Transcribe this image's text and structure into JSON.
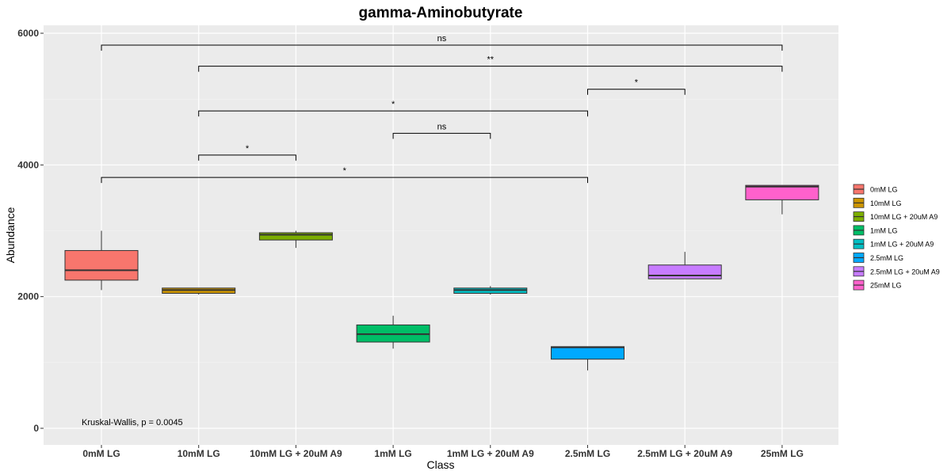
{
  "chart_data": {
    "type": "box",
    "title": "gamma-Aminobutyrate",
    "xlabel": "Class",
    "ylabel": "Abundance",
    "ylim": [
      -250,
      6000
    ],
    "yticks": [
      0,
      2000,
      4000,
      6000
    ],
    "categories": [
      "0mM LG",
      "10mM LG",
      "10mM LG + 20uM A9",
      "1mM LG",
      "1mM LG + 20uM A9",
      "2.5mM LG",
      "2.5mM LG + 20uM A9",
      "25mM LG"
    ],
    "colors": [
      "#F8766D",
      "#CD9600",
      "#7CAE00",
      "#00BE67",
      "#00BFC4",
      "#00A9FF",
      "#C77CFF",
      "#FF61CC"
    ],
    "boxes": [
      {
        "lower_whisker": 2100,
        "q1": 2250,
        "median": 2400,
        "q3": 2700,
        "upper_whisker": 3000
      },
      {
        "lower_whisker": 2030,
        "q1": 2050,
        "median": 2100,
        "q3": 2130,
        "upper_whisker": 2130
      },
      {
        "lower_whisker": 2740,
        "q1": 2860,
        "median": 2940,
        "q3": 2970,
        "upper_whisker": 3000
      },
      {
        "lower_whisker": 1210,
        "q1": 1310,
        "median": 1430,
        "q3": 1570,
        "upper_whisker": 1710
      },
      {
        "lower_whisker": 2030,
        "q1": 2050,
        "median": 2100,
        "q3": 2130,
        "upper_whisker": 2160
      },
      {
        "lower_whisker": 880,
        "q1": 1050,
        "median": 1230,
        "q3": 1240,
        "upper_whisker": 1240
      },
      {
        "lower_whisker": 2270,
        "q1": 2270,
        "median": 2320,
        "q3": 2480,
        "upper_whisker": 2680
      },
      {
        "lower_whisker": 3250,
        "q1": 3470,
        "median": 3670,
        "q3": 3690,
        "upper_whisker": 3690
      }
    ],
    "comparisons": [
      {
        "from": 0,
        "to": 7,
        "y": 5820,
        "label": "ns"
      },
      {
        "from": 1,
        "to": 7,
        "y": 5500,
        "label": "**"
      },
      {
        "from": 5,
        "to": 6,
        "y": 5150,
        "label": "*"
      },
      {
        "from": 1,
        "to": 5,
        "y": 4820,
        "label": "*"
      },
      {
        "from": 3,
        "to": 4,
        "y": 4480,
        "label": "ns"
      },
      {
        "from": 1,
        "to": 2,
        "y": 4150,
        "label": "*"
      },
      {
        "from": 0,
        "to": 5,
        "y": 3810,
        "label": "*"
      }
    ],
    "annotation": "Kruskal-Wallis, p = 0.0045",
    "legend": {
      "position": "right",
      "entries": [
        "0mM LG",
        "10mM LG",
        "10mM LG + 20uM A9",
        "1mM LG",
        "1mM LG + 20uM A9",
        "2.5mM LG",
        "2.5mM LG + 20uM A9",
        "25mM LG"
      ]
    },
    "grid": true
  }
}
